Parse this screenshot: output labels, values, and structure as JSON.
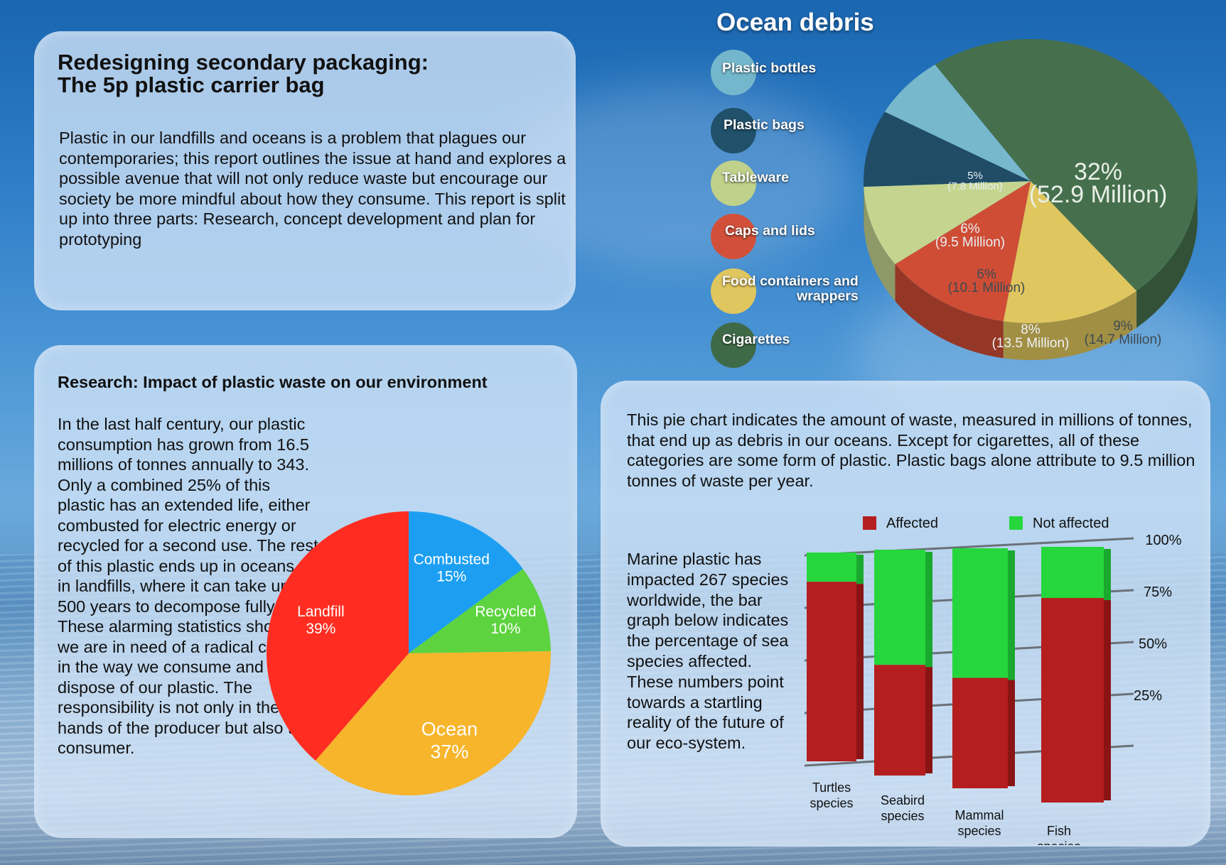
{
  "title": {
    "line1": "Redesigning secondary packaging:",
    "line2": "The 5p plastic carrier bag"
  },
  "intro": "Plastic in our landfills and oceans is a problem that plagues our contemporaries; this report outlines the issue at hand and explores a possible avenue that will not only reduce waste but encourage our society be more mindful about how they consume. This report is split up into three parts: Research, concept development and plan for prototyping",
  "research": {
    "heading": "Research: Impact of plastic waste on our environment",
    "text": "In the last half century, our plastic consumption has grown from 16.5 millions of tonnes annually to 343. Only a combined 25% of this plastic has an extended life, either combusted for electric energy or recycled for a second use. The rest of this plastic ends up in oceans or in landfills, where it can take up to 500 years to decompose fully. These alarming statistics show that we are in need of a radical change in the way we consume and dispose of our plastic. The responsibility is not only in the hands of the producer but also the consumer."
  },
  "debris": {
    "title": "Ocean debris",
    "description": "This pie chart indicates the amount of waste, measured in millions of tonnes, that end up as debris in our oceans. Except for cigarettes, all of these categories are some form of plastic. Plastic bags alone attribute to 9.5 million tonnes of waste per year.",
    "legend": [
      {
        "label": "Plastic bottles",
        "color": "#74b7cc"
      },
      {
        "label": "Plastic bags",
        "color": "#20506a"
      },
      {
        "label": "Tableware",
        "color": "#bfd18a"
      },
      {
        "label": "Caps and lids",
        "color": "#d2503a"
      },
      {
        "label": "Food containers and\nwrappers",
        "color": "#e0c65e"
      },
      {
        "label": "Cigarettes",
        "color": "#3f6a48"
      }
    ]
  },
  "marine": {
    "text": "Marine plastic has impacted 267 species worldwide, the bar graph below indicates the percentage of sea species affected. These numbers point towards a startling reality of the future of our eco-system."
  },
  "chart_data": [
    {
      "type": "pie",
      "title": "",
      "categories": [
        "Landfill",
        "Ocean",
        "Recycled",
        "Combusted"
      ],
      "values": [
        39,
        37,
        10,
        15
      ],
      "labels": [
        "39%",
        "37%",
        "10%",
        "15%"
      ],
      "colors": [
        "#ff2d21",
        "#f7b52b",
        "#5dd33f",
        "#1c9ff2"
      ]
    },
    {
      "type": "pie",
      "title": "Ocean debris",
      "categories": [
        "Cigarettes",
        "Food containers and wrappers",
        "Caps and lids",
        "Tableware",
        "Plastic bags",
        "Plastic bottles"
      ],
      "values": [
        52.9,
        14.7,
        13.5,
        10.1,
        9.5,
        7.8
      ],
      "labels": [
        "32%\n(52.9 Million)",
        "9%\n(14.7 Million)",
        "8%\n(13.5 Million)",
        "6%\n(10.1 Million)",
        "6%\n(9.5 Million)",
        "5%\n(7.8 Million)"
      ],
      "colors": [
        "#46704d",
        "#e0c65e",
        "#cf4d35",
        "#c5d58f",
        "#204c66",
        "#77b8cc"
      ]
    },
    {
      "type": "bar",
      "stacked": true,
      "categories": [
        "Turtles species",
        "Seabird species",
        "Mammal species",
        "Fish species"
      ],
      "series": [
        {
          "name": "Affected",
          "values": [
            86,
            49,
            46,
            80
          ],
          "color": "#b51e1e"
        },
        {
          "name": "Not affected",
          "values": [
            14,
            51,
            54,
            20
          ],
          "color": "#26d63d"
        }
      ],
      "yticks": [
        "25%",
        "50%",
        "75%",
        "100%"
      ],
      "ylim": [
        0,
        100
      ]
    }
  ]
}
